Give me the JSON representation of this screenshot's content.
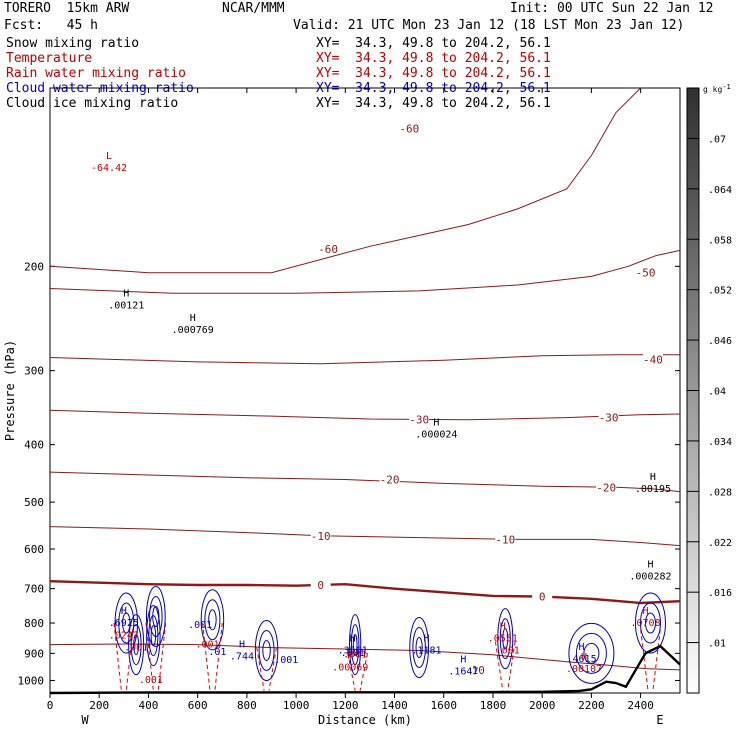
{
  "header": {
    "model": "TORERO  15km ARW",
    "center": "NCAR/MMM",
    "init": "Init: 00 UTC Sun 22 Jan 12",
    "fcst": "Fcst:   45 h",
    "valid": "Valid: 21 UTC Mon 23 Jan 12 (18 LST Mon 23 Jan 12)"
  },
  "fields": [
    {
      "label": "Snow mixing ratio",
      "xy": "XY=  34.3, 49.8 to 204.2, 56.1",
      "color": "#000000"
    },
    {
      "label": "Temperature",
      "xy": "XY=  34.3, 49.8 to 204.2, 56.1",
      "color": "#c00000"
    },
    {
      "label": "Rain water mixing ratio",
      "xy": "XY=  34.3, 49.8 to 204.2, 56.1",
      "color": "#c00000"
    },
    {
      "label": "Cloud water mixing ratio",
      "xy": "XY=  34.3, 49.8 to 204.2, 56.1",
      "color": "#0000c0"
    },
    {
      "label": "Cloud ice mixing ratio",
      "xy": "XY=  34.3, 49.8 to 204.2, 56.1",
      "color": "#000000"
    }
  ],
  "chart_data": {
    "type": "contour",
    "xlabel": "Distance (km)",
    "ylabel": "Pressure (hPa)",
    "x_ticks": [
      0,
      200,
      400,
      600,
      800,
      1000,
      1200,
      1400,
      1600,
      1800,
      2000,
      2200,
      2400
    ],
    "xlim": [
      0,
      2560
    ],
    "y_ticks": [
      200,
      300,
      400,
      500,
      600,
      700,
      800,
      900,
      1000
    ],
    "ylim": [
      1050,
      100
    ],
    "y_scale": "log",
    "x_end_labels": {
      "left": "W",
      "right": "E"
    },
    "colorbar": {
      "unit": "g kg",
      "unit_exp": "-1",
      "ticks": [
        ".01",
        ".016",
        ".022",
        ".028",
        ".034",
        ".04",
        ".046",
        ".052",
        ".058",
        ".064",
        ".07"
      ]
    },
    "temperature_contours": [
      {
        "level": -60,
        "label": "-60",
        "points": [
          [
            0,
            200
          ],
          [
            400,
            205
          ],
          [
            900,
            205
          ],
          [
            1300,
            185
          ],
          [
            1700,
            170
          ],
          [
            1900,
            160
          ],
          [
            2100,
            148
          ],
          [
            2200,
            130
          ],
          [
            2300,
            110
          ],
          [
            2400,
            100
          ]
        ],
        "label_at": [
          1130,
          187
        ],
        "label2_at": [
          1460,
          117
        ]
      },
      {
        "level": -50,
        "label": "-50",
        "points": [
          [
            0,
            218
          ],
          [
            500,
            222
          ],
          [
            1000,
            222
          ],
          [
            1500,
            220
          ],
          [
            1900,
            215
          ],
          [
            2200,
            208
          ],
          [
            2350,
            200
          ],
          [
            2460,
            192
          ],
          [
            2560,
            188
          ]
        ],
        "label_at": [
          2420,
          205
        ]
      },
      {
        "level": -40,
        "label": "-40",
        "points": [
          [
            0,
            285
          ],
          [
            600,
            290
          ],
          [
            1100,
            292
          ],
          [
            1600,
            288
          ],
          [
            2000,
            283
          ],
          [
            2300,
            282
          ],
          [
            2500,
            282
          ],
          [
            2560,
            282
          ]
        ],
        "label_at": [
          2450,
          287
        ]
      },
      {
        "level": -30,
        "label": "-30",
        "points": [
          [
            0,
            350
          ],
          [
            400,
            354
          ],
          [
            900,
            358
          ],
          [
            1300,
            362
          ],
          [
            1700,
            363
          ],
          [
            2100,
            360
          ],
          [
            2400,
            356
          ],
          [
            2560,
            355
          ]
        ],
        "label_at": [
          1500,
          363
        ],
        "label2_at": [
          2270,
          360
        ]
      },
      {
        "level": -20,
        "label": "-20",
        "points": [
          [
            0,
            445
          ],
          [
            400,
            450
          ],
          [
            800,
            455
          ],
          [
            1200,
            458
          ],
          [
            1600,
            465
          ],
          [
            2000,
            470
          ],
          [
            2300,
            472
          ],
          [
            2450,
            475
          ],
          [
            2560,
            480
          ]
        ],
        "label_at": [
          1380,
          458
        ],
        "label2_at": [
          2260,
          472
        ]
      },
      {
        "level": -10,
        "label": "-10",
        "points": [
          [
            0,
            550
          ],
          [
            400,
            555
          ],
          [
            800,
            563
          ],
          [
            1100,
            570
          ],
          [
            1500,
            574
          ],
          [
            1900,
            578
          ],
          [
            2200,
            578
          ],
          [
            2400,
            585
          ],
          [
            2560,
            592
          ]
        ],
        "label_at": [
          1100,
          570
        ],
        "label2_at": [
          1850,
          578
        ]
      },
      {
        "level": 0,
        "label": "0",
        "points": [
          [
            0,
            680
          ],
          [
            200,
            684
          ],
          [
            400,
            688
          ],
          [
            600,
            690
          ],
          [
            800,
            690
          ],
          [
            1000,
            692
          ],
          [
            1200,
            688
          ],
          [
            1400,
            700
          ],
          [
            1600,
            710
          ],
          [
            1800,
            720
          ],
          [
            2000,
            722
          ],
          [
            2200,
            728
          ],
          [
            2400,
            740
          ],
          [
            2560,
            735
          ]
        ],
        "label_at": [
          1100,
          690
        ],
        "label2_at": [
          2000,
          722
        ]
      },
      {
        "level": 10,
        "label": "10",
        "points": [
          [
            0,
            870
          ],
          [
            300,
            868
          ],
          [
            600,
            870
          ],
          [
            900,
            880
          ],
          [
            1200,
            885
          ],
          [
            1500,
            890
          ],
          [
            1800,
            905
          ],
          [
            2100,
            930
          ],
          [
            2300,
            945
          ],
          [
            2420,
            955
          ],
          [
            2560,
            960
          ]
        ],
        "label_at": [
          1740,
          960
        ]
      }
    ],
    "extrema": [
      {
        "kind": "L",
        "value": "-64.42",
        "x": 240,
        "p": 135,
        "color": "#c00000"
      },
      {
        "kind": "H",
        "value": ".00121",
        "x": 310,
        "p": 230,
        "color": "#000000"
      },
      {
        "kind": "H",
        "value": ".000769",
        "x": 580,
        "p": 253,
        "color": "#000000"
      },
      {
        "kind": "H",
        "value": ".000024",
        "x": 1570,
        "p": 380,
        "color": "#000000"
      },
      {
        "kind": "H",
        "value": ".00195",
        "x": 2450,
        "p": 470,
        "color": "#000000"
      },
      {
        "kind": "H",
        "value": ".000282",
        "x": 2440,
        "p": 660,
        "color": "#000000"
      },
      {
        "kind": "H",
        "value": ".6925",
        "x": 300,
        "p": 790,
        "color": "#0000c0"
      },
      {
        "kind": "H",
        "value": ".744",
        "x": 780,
        "p": 900,
        "color": "#0000c0"
      },
      {
        "kind": "H",
        "value": ".3561",
        "x": 1230,
        "p": 880,
        "color": "#0000c0"
      },
      {
        "kind": "H",
        "value": ".1181",
        "x": 1530,
        "p": 880,
        "color": "#0000c0"
      },
      {
        "kind": "H",
        "value": ".1647",
        "x": 1680,
        "p": 955,
        "color": "#0000c0"
      },
      {
        "kind": "H",
        "value": ".4615",
        "x": 2160,
        "p": 910,
        "color": "#0000c0"
      },
      {
        "kind": "H",
        "value": ".0708",
        "x": 2420,
        "p": 790,
        "color": "#c00000"
      },
      {
        "kind": "H",
        "value": ".0551",
        "x": 1840,
        "p": 840,
        "color": "#c00000"
      },
      {
        "kind": "H",
        "value": ".00069",
        "x": 1220,
        "p": 940,
        "color": "#c00000"
      },
      {
        "kind": "H",
        "value": ".00107",
        "x": 2170,
        "p": 945,
        "color": "#c00000"
      }
    ],
    "rain_labels": [
      {
        "text": ".0247",
        "x": 300,
        "p": 850,
        "color": "#c00000"
      },
      {
        "text": ".001",
        "x": 350,
        "p": 890,
        "color": "#c00000"
      },
      {
        "text": ".001",
        "x": 410,
        "p": 1010,
        "color": "#c00000"
      },
      {
        "text": ".001",
        "x": 1240,
        "p": 915,
        "color": "#c00000"
      },
      {
        "text": ".001",
        "x": 1860,
        "p": 900,
        "color": "#c00000"
      },
      {
        "text": ".001",
        "x": 640,
        "p": 880,
        "color": "#c00000"
      }
    ],
    "cloud_labels": [
      {
        "text": ".001",
        "x": 610,
        "p": 815,
        "color": "#0000c0"
      },
      {
        "text": ".001",
        "x": 960,
        "p": 935,
        "color": "#0000c0"
      },
      {
        "text": ".001",
        "x": 1230,
        "p": 910,
        "color": "#0000c0"
      },
      {
        "text": ".01",
        "x": 680,
        "p": 905,
        "color": "#0000c0"
      }
    ],
    "terrain_p": [
      [
        0,
        1050
      ],
      [
        400,
        1048
      ],
      [
        800,
        1048
      ],
      [
        1200,
        1047
      ],
      [
        1600,
        1047
      ],
      [
        2000,
        1045
      ],
      [
        2150,
        1042
      ],
      [
        2200,
        1035
      ],
      [
        2260,
        1005
      ],
      [
        2300,
        1010
      ],
      [
        2340,
        1025
      ],
      [
        2380,
        960
      ],
      [
        2420,
        900
      ],
      [
        2480,
        875
      ],
      [
        2560,
        940
      ]
    ]
  }
}
